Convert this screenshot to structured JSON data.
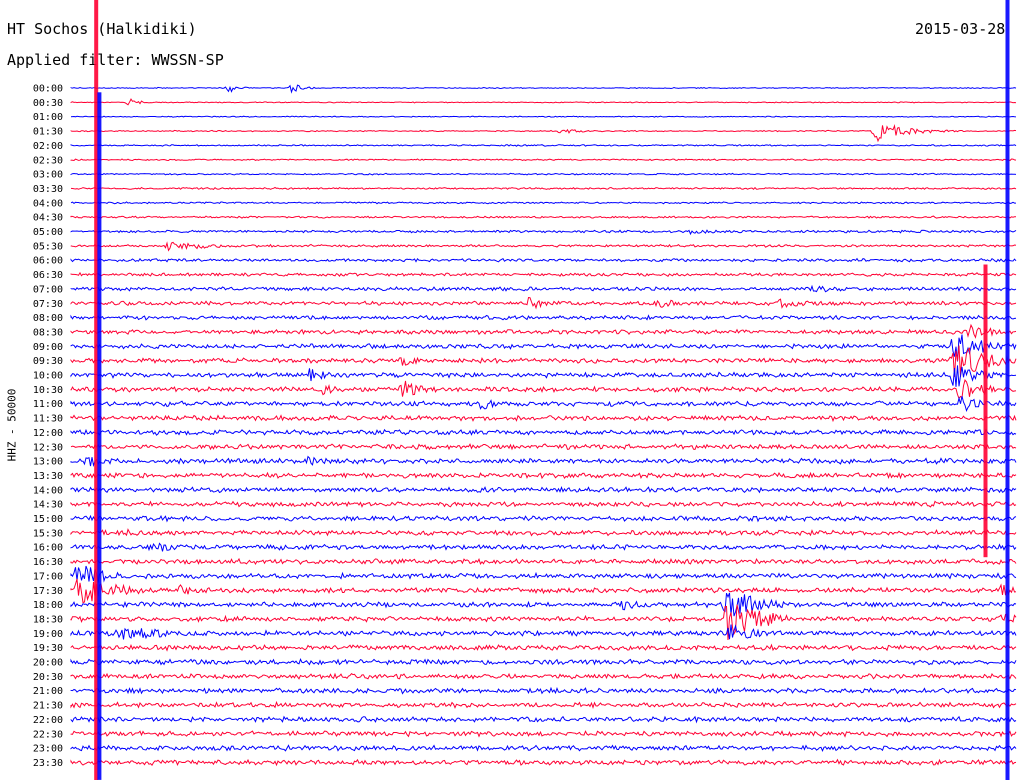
{
  "header": {
    "station": "HT Sochos (Halkidiki)",
    "filter": "Applied filter: WWSSN-SP",
    "date": "2015-03-28"
  },
  "chart_data": {
    "type": "line",
    "title": "HT Sochos (Halkidiki)",
    "subtitle": "Applied filter: WWSSN-SP",
    "date": "2015-03-28",
    "ylabel": "HHZ - 50000",
    "categories": [
      "00:00",
      "00:30",
      "01:00",
      "01:30",
      "02:00",
      "02:30",
      "03:00",
      "03:30",
      "04:00",
      "04:30",
      "05:00",
      "05:30",
      "06:00",
      "06:30",
      "07:00",
      "07:30",
      "08:00",
      "08:30",
      "09:00",
      "09:30",
      "10:00",
      "10:30",
      "11:00",
      "11:30",
      "12:00",
      "12:30",
      "13:00",
      "13:30",
      "14:00",
      "14:30",
      "15:00",
      "15:30",
      "16:00",
      "16:30",
      "17:00",
      "17:30",
      "18:00",
      "18:30",
      "19:00",
      "19:30",
      "20:00",
      "20:30",
      "21:00",
      "21:30",
      "22:00",
      "22:30",
      "23:00",
      "23:30"
    ],
    "series_colors": [
      "#0000ff",
      "#ff0033"
    ],
    "trace_minutes": 30,
    "noise_level": [
      0.4,
      0.4,
      0.4,
      0.5,
      0.6,
      0.6,
      0.6,
      0.7,
      0.7,
      0.8,
      1.0,
      1.0,
      1.2,
      1.3,
      1.5,
      1.6,
      1.6,
      1.7,
      1.8,
      1.9,
      2.0,
      2.0,
      2.0,
      2.0,
      2.0,
      2.0,
      2.0,
      2.0,
      2.0,
      2.0,
      2.0,
      2.0,
      2.0,
      2.0,
      2.0,
      2.0,
      2.0,
      2.0,
      2.0,
      2.0,
      2.0,
      2.0,
      2.0,
      2.0,
      2.0,
      2.0,
      2.0,
      2.0
    ],
    "events": [
      {
        "row": 0,
        "minute": 5.0,
        "amplitude": 5,
        "duration_min": 0.5
      },
      {
        "row": 0,
        "minute": 7.0,
        "amplitude": 6,
        "duration_min": 0.5
      },
      {
        "row": 1,
        "minute": 1.8,
        "amplitude": 5,
        "duration_min": 0.5
      },
      {
        "row": 3,
        "minute": 15.5,
        "amplitude": 3,
        "duration_min": 1.0
      },
      {
        "row": 3,
        "minute": 25.5,
        "amplitude": 11,
        "duration_min": 1.5
      },
      {
        "row": 11,
        "minute": 3.0,
        "amplitude": 5,
        "duration_min": 2.5
      },
      {
        "row": 10,
        "minute": 19.5,
        "amplitude": 3,
        "duration_min": 2.5
      },
      {
        "row": 14,
        "minute": 23.5,
        "amplitude": 4,
        "duration_min": 2.0
      },
      {
        "row": 15,
        "minute": 14.5,
        "amplitude": 6,
        "duration_min": 1.5
      },
      {
        "row": 15,
        "minute": 18.5,
        "amplitude": 6,
        "duration_min": 1.5
      },
      {
        "row": 15,
        "minute": 22.5,
        "amplitude": 5,
        "duration_min": 1.5
      },
      {
        "row": 19,
        "minute": 10.5,
        "amplitude": 6,
        "duration_min": 1.0
      },
      {
        "row": 20,
        "minute": 7.5,
        "amplitude": 8,
        "duration_min": 1.0
      },
      {
        "row": 21,
        "minute": 10.5,
        "amplitude": 10,
        "duration_min": 1.0
      },
      {
        "row": 21,
        "minute": 8.0,
        "amplitude": 6,
        "duration_min": 1.0
      },
      {
        "row": 22,
        "minute": 13.0,
        "amplitude": 7,
        "duration_min": 1.0
      },
      {
        "row": 26,
        "minute": 0.5,
        "amplitude": 6,
        "duration_min": 1.0
      },
      {
        "row": 26,
        "minute": 7.5,
        "amplitude": 5,
        "duration_min": 1.0
      },
      {
        "row": 31,
        "minute": 1.5,
        "amplitude": 5,
        "duration_min": 1.5
      },
      {
        "row": 32,
        "minute": 2.5,
        "amplitude": 6,
        "duration_min": 2.0
      },
      {
        "row": 33,
        "minute": 9.5,
        "amplitude": 4,
        "duration_min": 1.5
      },
      {
        "row": 34,
        "minute": 0.2,
        "amplitude": 14,
        "duration_min": 1.5
      },
      {
        "row": 35,
        "minute": 0.2,
        "amplitude": 16,
        "duration_min": 2.0
      },
      {
        "row": 35,
        "minute": 3.5,
        "amplitude": 7,
        "duration_min": 0.6
      },
      {
        "row": 36,
        "minute": 17.5,
        "amplitude": 6,
        "duration_min": 1.0
      },
      {
        "row": 36,
        "minute": 20.8,
        "amplitude": 20,
        "duration_min": 1.5
      },
      {
        "row": 37,
        "minute": 20.8,
        "amplitude": 22,
        "duration_min": 1.8
      },
      {
        "row": 38,
        "minute": 1.5,
        "amplitude": 8,
        "duration_min": 3.0
      },
      {
        "row": 38,
        "minute": 20.8,
        "amplitude": 10,
        "duration_min": 1.5
      },
      {
        "row": 17,
        "minute": 28.5,
        "amplitude": 10,
        "duration_min": 1.0
      },
      {
        "row": 18,
        "minute": 28.0,
        "amplitude": 18,
        "duration_min": 1.5
      },
      {
        "row": 19,
        "minute": 28.0,
        "amplitude": 22,
        "duration_min": 1.5
      },
      {
        "row": 20,
        "minute": 28.0,
        "amplitude": 14,
        "duration_min": 1.2
      },
      {
        "row": 21,
        "minute": 28.2,
        "amplitude": 16,
        "duration_min": 1.0
      },
      {
        "row": 22,
        "minute": 28.2,
        "amplitude": 10,
        "duration_min": 1.0
      },
      {
        "row": 35,
        "minute": 29.5,
        "amplitude": 8,
        "duration_min": 1.0
      },
      {
        "row": 37,
        "minute": 29.5,
        "amplitude": 7,
        "duration_min": 1.0
      }
    ],
    "saturated_spans": [
      {
        "minute": 0.8,
        "from_row": 0,
        "to_row": 47,
        "color_index": 1
      },
      {
        "minute": 0.9,
        "from_row": 1,
        "to_row": 47,
        "color_index": 0
      },
      {
        "minute": 29.0,
        "from_row": 13,
        "to_row": 32,
        "color_index": 1
      },
      {
        "minute": 29.7,
        "from_row": 0,
        "to_row": 47,
        "color_index": 0
      }
    ]
  }
}
